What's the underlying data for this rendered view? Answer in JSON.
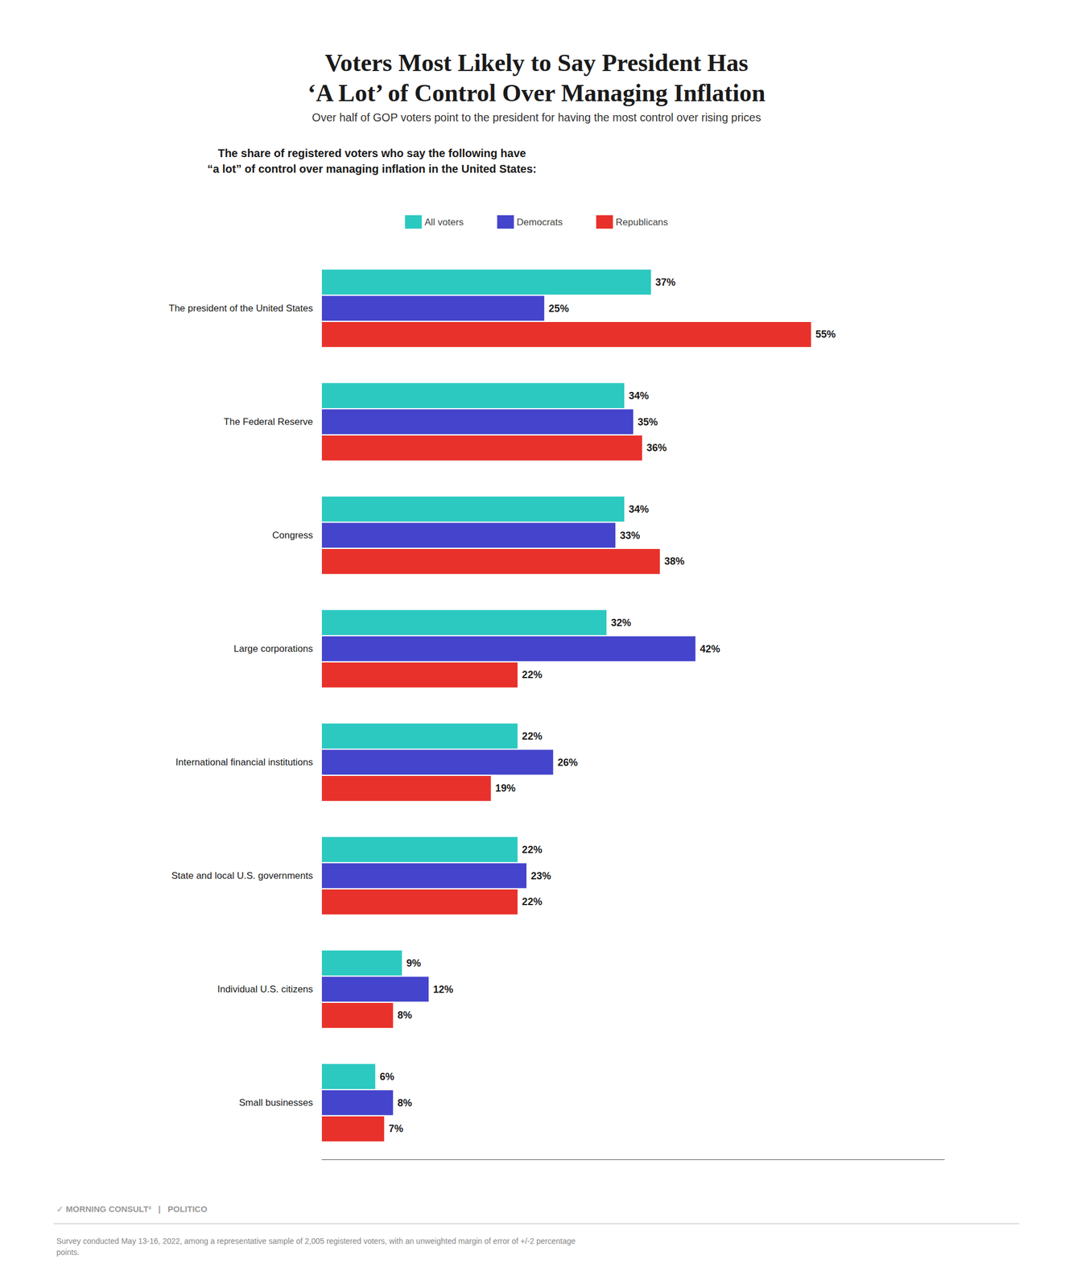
{
  "chart_data": {
    "type": "bar",
    "orientation": "horizontal",
    "title": "Voters Most Likely to Say President Has\n‘A Lot’ of Control Over Managing Inflation",
    "subtitle": "Over half of GOP voters point to the president for having the most control over rising prices",
    "annotations": [
      "The share of registered voters who say the following have\n“a lot” of control over managing inflation in the United States:",
      "✓ MORNING CONSULT²   |   POLITICO",
      "Survey conducted May 13-16, 2022, among a representative sample of 2,005 registered voters, with an unweighted margin of error of +/-2 percentage\npoints."
    ],
    "categories": [
      "The president of the United States",
      "The Federal Reserve",
      "Congress",
      "Large corporations",
      "International financial institutions",
      "State and local U.S. governments",
      "Individual U.S. citizens",
      "Small businesses"
    ],
    "series": [
      {
        "name": "All voters",
        "color": "#2bc9c0",
        "values": [
          37,
          34,
          34,
          32,
          22,
          22,
          9,
          6
        ],
        "value_labels": [
          "37%",
          "34%",
          "34%",
          "32%",
          "22%",
          "22%",
          "9%",
          "6%"
        ]
      },
      {
        "name": "Democrats",
        "color": "#4444cc",
        "values": [
          25,
          35,
          33,
          42,
          26,
          23,
          12,
          8
        ],
        "value_labels": [
          "25%",
          "35%",
          "33%",
          "42%",
          "26%",
          "23%",
          "12%",
          "8%"
        ]
      },
      {
        "name": "Republicans",
        "color": "#e8312a",
        "values": [
          55,
          36,
          38,
          22,
          19,
          22,
          8,
          7
        ],
        "value_labels": [
          "55%",
          "36%",
          "38%",
          "22%",
          "19%",
          "22%",
          "8%",
          "7%"
        ]
      }
    ],
    "xlim": [
      0,
      70
    ],
    "data_labels": true,
    "tick_labels": "y",
    "grid": false,
    "legend": "top"
  }
}
